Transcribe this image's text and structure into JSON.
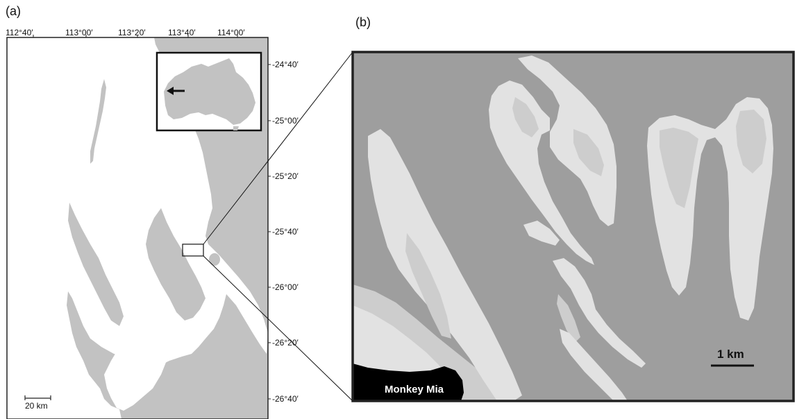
{
  "panels": {
    "a": {
      "label": "(a)"
    },
    "b": {
      "label": "(b)"
    }
  },
  "map_a": {
    "longitude_ticks": [
      "112°40′",
      "113°00′",
      "113°20′",
      "113°40′",
      "114°00′"
    ],
    "latitude_ticks": [
      "-24°40′",
      "-25°00′",
      "-25°20′",
      "-25°40′",
      "-26°00′",
      "-26°20′",
      "-26°40′"
    ],
    "scale_bar": "20 km",
    "inset": {
      "content": "Australia",
      "marker": "arrow"
    }
  },
  "map_b": {
    "scale_bar": "1 km",
    "place_label": "Monkey Mia"
  },
  "colors": {
    "land": "#c2c2c2",
    "water_a": "#ffffff",
    "water_b": "#9e9e9e",
    "bank_light": "#e2e2e2",
    "bank_mid": "#cdcdcd",
    "monkey_mia": "#000000",
    "frame": "#222222"
  }
}
